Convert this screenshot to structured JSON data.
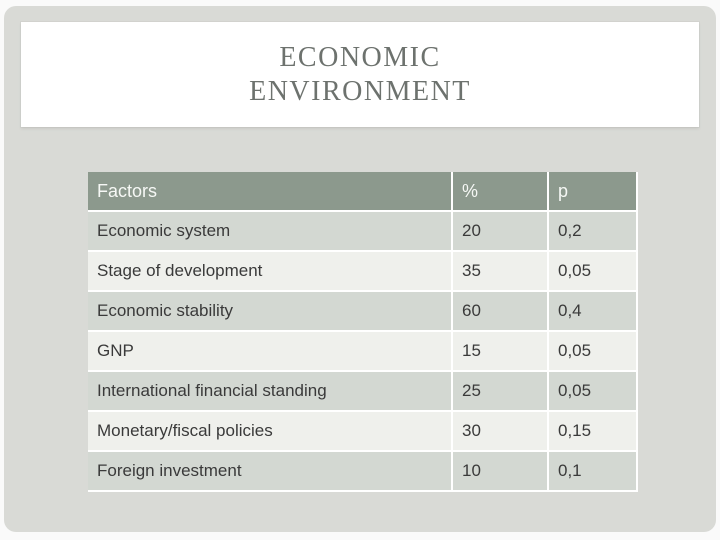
{
  "slide": {
    "title_line1": "ECONOMIC",
    "title_line2": "ENVIRONMENT"
  },
  "table": {
    "columns": [
      "Factors",
      "%",
      "p"
    ],
    "rows": [
      {
        "factor": "Economic system",
        "percent": "20",
        "p": "0,2"
      },
      {
        "factor": "Stage of development",
        "percent": "35",
        "p": "0,05"
      },
      {
        "factor": "Economic stability",
        "percent": "60",
        "p": "0,4"
      },
      {
        "factor": "GNP",
        "percent": "15",
        "p": "0,05"
      },
      {
        "factor": "International financial standing",
        "percent": "25",
        "p": "0,05"
      },
      {
        "factor": "Monetary/fiscal policies",
        "percent": "30",
        "p": "0,15"
      },
      {
        "factor": "Foreign investment",
        "percent": "10",
        "p": "0,1"
      }
    ]
  },
  "chart_data": {
    "type": "table",
    "title": "ECONOMIC ENVIRONMENT",
    "categories": [
      "Economic system",
      "Stage of development",
      "Economic stability",
      "GNP",
      "International financial standing",
      "Monetary/fiscal policies",
      "Foreign investment"
    ],
    "series": [
      {
        "name": "%",
        "values": [
          20,
          35,
          60,
          15,
          25,
          30,
          10
        ]
      },
      {
        "name": "p",
        "values": [
          0.2,
          0.05,
          0.4,
          0.05,
          0.05,
          0.15,
          0.1
        ]
      }
    ]
  },
  "colors": {
    "slide_bg": "#d9dad6",
    "titlebox_bg": "#ffffff",
    "title_color": "#6d726e",
    "header_bg": "#8c998d",
    "header_text": "#f6f8f5",
    "row_odd": "#d3d8d2",
    "row_even": "#eff0ec",
    "cell_text": "#3a3a3a"
  }
}
